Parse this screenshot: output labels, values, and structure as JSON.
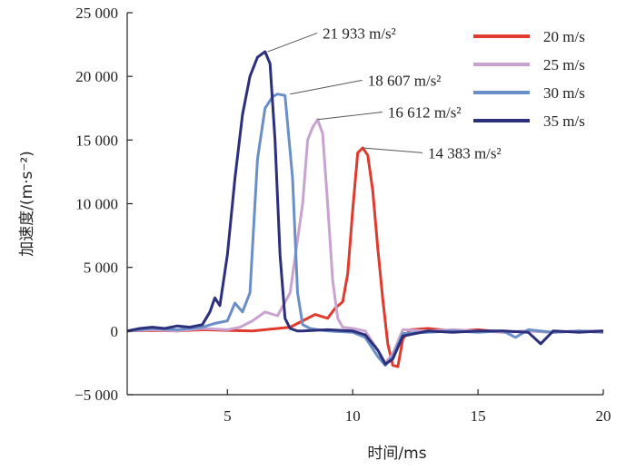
{
  "chart_data": {
    "type": "line",
    "xlabel": "时间/ms",
    "ylabel": "加速度/(m·s⁻²)",
    "xlim": [
      1,
      20
    ],
    "ylim": [
      -5000,
      25000
    ],
    "xticks": [
      5,
      10,
      15,
      20
    ],
    "xtick_labels": [
      "5",
      "10",
      "15",
      "20"
    ],
    "yticks": [
      -5000,
      0,
      5000,
      10000,
      15000,
      20000,
      25000
    ],
    "ytick_labels": [
      "−5 000",
      "0",
      "5 000",
      "10 000",
      "15 000",
      "20 000",
      "25 000"
    ],
    "legend_position": "top-right",
    "grid": false,
    "series": [
      {
        "name": "20 m/s",
        "color": "#e03a2f",
        "x": [
          1,
          2,
          3,
          4,
          5,
          6,
          7,
          7.5,
          8,
          8.5,
          9,
          9.3,
          9.6,
          9.8,
          10,
          10.2,
          10.4,
          10.6,
          10.8,
          11,
          11.2,
          11.4,
          11.6,
          11.8,
          12,
          12.3,
          13,
          14,
          15,
          16,
          17,
          18,
          19,
          20
        ],
        "y": [
          0,
          50,
          0,
          100,
          50,
          0,
          200,
          300,
          800,
          1300,
          1000,
          1800,
          2300,
          4500,
          9500,
          14000,
          14383,
          13800,
          11000,
          6500,
          2500,
          -1000,
          -2700,
          -2800,
          -600,
          100,
          200,
          0,
          100,
          -100,
          0,
          -100,
          0,
          -100
        ]
      },
      {
        "name": "25 m/s",
        "color": "#c9a3cf",
        "x": [
          1,
          2,
          3,
          4,
          5,
          5.5,
          6,
          6.5,
          7,
          7.5,
          8,
          8.2,
          8.4,
          8.6,
          8.8,
          9,
          9.2,
          9.4,
          9.6,
          10,
          10.5,
          11,
          11.3,
          11.6,
          12,
          13,
          14,
          15,
          16,
          17,
          18,
          19,
          20
        ],
        "y": [
          0,
          100,
          0,
          200,
          100,
          300,
          800,
          1500,
          1200,
          3000,
          10000,
          15000,
          16000,
          16612,
          15500,
          10000,
          4000,
          1000,
          300,
          200,
          0,
          -1500,
          -2500,
          -1800,
          100,
          0,
          100,
          0,
          -100,
          0,
          -100,
          0,
          0
        ]
      },
      {
        "name": "30 m/s",
        "color": "#6a8fc6",
        "x": [
          1,
          2,
          3,
          4,
          4.5,
          5,
          5.3,
          5.6,
          5.9,
          6.2,
          6.5,
          6.8,
          7,
          7.3,
          7.6,
          7.8,
          8,
          8.3,
          8.6,
          9,
          10,
          10.5,
          11,
          11.3,
          11.6,
          12,
          13,
          14,
          15,
          16,
          16.5,
          17,
          18,
          19,
          20
        ],
        "y": [
          0,
          200,
          100,
          300,
          600,
          800,
          2200,
          1500,
          3000,
          13500,
          17500,
          18400,
          18607,
          18500,
          12000,
          3000,
          500,
          200,
          100,
          0,
          -100,
          -500,
          -2000,
          -2700,
          -2000,
          -200,
          -100,
          0,
          -100,
          0,
          -500,
          100,
          -100,
          0,
          -100
        ]
      },
      {
        "name": "35 m/s",
        "color": "#2c2f7c",
        "x": [
          1,
          1.5,
          2,
          2.5,
          3,
          3.5,
          4,
          4.3,
          4.5,
          4.7,
          5,
          5.3,
          5.6,
          5.9,
          6.2,
          6.5,
          6.7,
          6.9,
          7.1,
          7.3,
          7.5,
          7.8,
          8,
          9,
          10,
          10.5,
          11,
          11.3,
          11.6,
          12,
          13,
          14,
          15,
          16,
          17,
          17.5,
          18,
          19,
          20
        ],
        "y": [
          0,
          200,
          300,
          200,
          400,
          300,
          500,
          1500,
          2600,
          2000,
          6000,
          12000,
          17000,
          20000,
          21500,
          21933,
          21000,
          15000,
          6000,
          1000,
          200,
          0,
          0,
          100,
          0,
          -300,
          -1500,
          -2600,
          -2200,
          -400,
          0,
          -100,
          0,
          0,
          -100,
          -1000,
          0,
          -100,
          0
        ]
      }
    ],
    "annotations": [
      {
        "text": "21 933 m/s²",
        "x": 6.6,
        "y": 21933,
        "label_x": 8.8,
        "label_y": 23400
      },
      {
        "text": "18 607 m/s²",
        "x": 7.5,
        "y": 18607,
        "label_x": 10.6,
        "label_y": 19700
      },
      {
        "text": "16 612 m/s²",
        "x": 8.6,
        "y": 16612,
        "label_x": 11.4,
        "label_y": 17200
      },
      {
        "text": "14 383 m/s²",
        "x": 10.4,
        "y": 14383,
        "label_x": 13.0,
        "label_y": 14000
      }
    ]
  }
}
